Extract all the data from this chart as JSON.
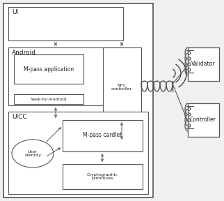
{
  "bg_color": "#f0f0f0",
  "box_color": "#ffffff",
  "border_color": "#555555",
  "text_color": "#222222",
  "figsize": [
    3.22,
    2.88
  ],
  "dpi": 100,
  "labels": {
    "UI": "UI",
    "Android": "Android",
    "mpass_app": "M-pass application",
    "seek": "Seek-for-Android",
    "nfc": "NFC\ncontroller",
    "uicc": "UICC",
    "cardlet": "M-pass cardlet",
    "crypto": "Cryptographic\nprimitives",
    "user_id": "User\nidentity",
    "validator": "Validator",
    "controller": "Controller"
  }
}
